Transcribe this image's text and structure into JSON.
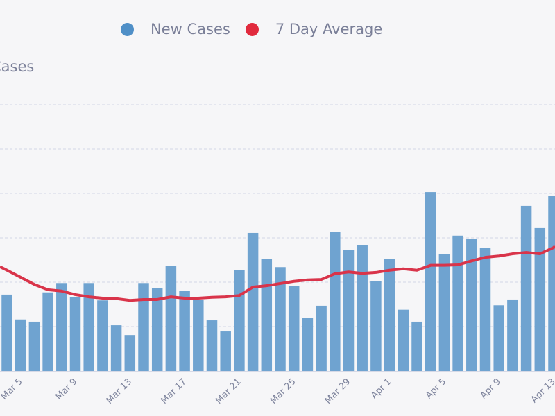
{
  "chart_data": {
    "type": "bar",
    "title": "",
    "ylabel": "Cases",
    "xlabel": "",
    "legend_position": "top-center",
    "grid": true,
    "ylim": [
      0,
      6.3
    ],
    "categories": [
      "Mar 4",
      "Mar 5",
      "Mar 6",
      "Mar 7",
      "Mar 8",
      "Mar 9",
      "Mar 10",
      "Mar 11",
      "Mar 12",
      "Mar 13",
      "Mar 14",
      "Mar 15",
      "Mar 16",
      "Mar 17",
      "Mar 18",
      "Mar 19",
      "Mar 20",
      "Mar 21",
      "Mar 22",
      "Mar 23",
      "Mar 24",
      "Mar 25",
      "Mar 26",
      "Mar 27",
      "Mar 28",
      "Mar 29",
      "Mar 30",
      "Mar 31",
      "Apr 1",
      "Apr 2",
      "Apr 3",
      "Apr 4",
      "Apr 5",
      "Apr 6",
      "Apr 7",
      "Apr 8",
      "Apr 9",
      "Apr 10",
      "Apr 11",
      "Apr 12",
      "Apr 13"
    ],
    "tick_labels": [
      "Mar 5",
      "Mar 9",
      "Mar 13",
      "Mar 17",
      "Mar 21",
      "Mar 25",
      "Mar 29",
      "Apr 1",
      "Apr 5",
      "Apr 9",
      "Apr 13"
    ],
    "series": [
      {
        "name": "New Cases",
        "type": "bar",
        "color": "#6fa3d0",
        "values": [
          1.72,
          1.16,
          1.11,
          1.77,
          1.98,
          1.67,
          1.98,
          1.59,
          1.03,
          0.81,
          1.98,
          1.86,
          2.36,
          1.81,
          1.61,
          1.14,
          0.89,
          2.27,
          3.11,
          2.52,
          2.34,
          1.91,
          1.2,
          1.47,
          3.14,
          2.73,
          2.83,
          2.03,
          2.52,
          1.38,
          1.11,
          4.03,
          2.63,
          3.05,
          2.97,
          2.78,
          1.48,
          1.61,
          3.72,
          3.22,
          3.94
        ]
      },
      {
        "name": "7 Day Average",
        "type": "line",
        "color": "#d9344a",
        "values": [
          2.27,
          2.11,
          1.95,
          1.83,
          1.8,
          1.72,
          1.67,
          1.64,
          1.63,
          1.59,
          1.61,
          1.61,
          1.67,
          1.64,
          1.64,
          1.66,
          1.67,
          1.7,
          1.89,
          1.92,
          1.97,
          2.02,
          2.05,
          2.06,
          2.19,
          2.23,
          2.2,
          2.22,
          2.27,
          2.3,
          2.27,
          2.38,
          2.38,
          2.39,
          2.48,
          2.56,
          2.59,
          2.64,
          2.67,
          2.64,
          2.78
        ]
      }
    ]
  },
  "legend": {
    "items": [
      {
        "label": "New Cases",
        "color": "#4f8fc7"
      },
      {
        "label": "7 Day Average",
        "color": "#e12a3d"
      }
    ]
  }
}
